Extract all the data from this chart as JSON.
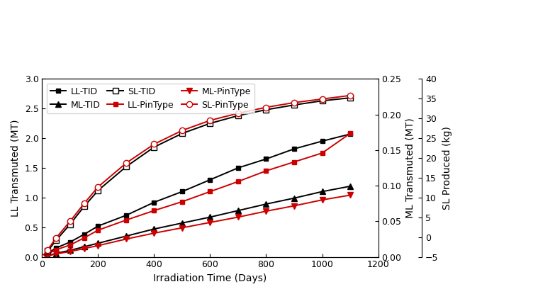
{
  "x": [
    0,
    20,
    50,
    100,
    150,
    200,
    300,
    400,
    500,
    600,
    700,
    800,
    900,
    1000,
    1100
  ],
  "LL_TID": [
    0.0,
    0.06,
    0.15,
    0.25,
    0.38,
    0.52,
    0.7,
    0.92,
    1.1,
    1.3,
    1.5,
    1.65,
    1.82,
    1.95,
    2.07
  ],
  "LL_PinType": [
    0.0,
    0.05,
    0.12,
    0.2,
    0.32,
    0.45,
    0.62,
    0.78,
    0.93,
    1.1,
    1.27,
    1.45,
    1.6,
    1.75,
    2.08
  ],
  "ML_TID": [
    0.0,
    0.02,
    0.06,
    0.11,
    0.17,
    0.23,
    0.35,
    0.47,
    0.57,
    0.67,
    0.78,
    0.89,
    0.99,
    1.1,
    1.19
  ],
  "ML_PinType": [
    0.0,
    0.015,
    0.05,
    0.09,
    0.14,
    0.19,
    0.3,
    0.4,
    0.49,
    0.58,
    0.67,
    0.77,
    0.86,
    0.96,
    1.04
  ],
  "SL_TID": [
    0.0,
    0.1,
    0.28,
    0.55,
    0.85,
    1.12,
    1.52,
    1.85,
    2.08,
    2.25,
    2.38,
    2.48,
    2.56,
    2.63,
    2.68
  ],
  "SL_PinType": [
    0.0,
    0.12,
    0.32,
    0.6,
    0.9,
    1.18,
    1.58,
    1.9,
    2.13,
    2.3,
    2.42,
    2.52,
    2.6,
    2.66,
    2.72
  ],
  "LL_ylabel": "LL Transmuted (MT)",
  "ML_ylabel": "ML Transmuted (MT)",
  "SL_ylabel": "SL Produced (kg)",
  "xlabel": "Irradiation Time (Days)",
  "xlim": [
    0,
    1200
  ],
  "LL_ylim": [
    0.0,
    3.0
  ],
  "ML_ylim": [
    0.0,
    0.25
  ],
  "SL_ylim": [
    -5,
    40
  ],
  "LL_yticks": [
    0.0,
    0.5,
    1.0,
    1.5,
    2.0,
    2.5,
    3.0
  ],
  "ML_yticks": [
    0.0,
    0.05,
    0.1,
    0.15,
    0.2,
    0.25
  ],
  "SL_yticks": [
    -5,
    0,
    5,
    10,
    15,
    20,
    25,
    30,
    35,
    40
  ],
  "xticks": [
    0,
    200,
    400,
    600,
    800,
    1000,
    1200
  ],
  "color_black": "#000000",
  "color_red": "#cc0000",
  "bg_color": "#ffffff",
  "legend_labels": [
    "LL-TID",
    "LL-PinType",
    "ML-TID",
    "ML-PinType",
    "SL-TID",
    "SL-PinType"
  ],
  "legend_ncol": 3,
  "markersize": 5,
  "linewidth": 1.4,
  "fontsize_label": 10,
  "fontsize_tick": 9,
  "fontsize_legend": 9
}
